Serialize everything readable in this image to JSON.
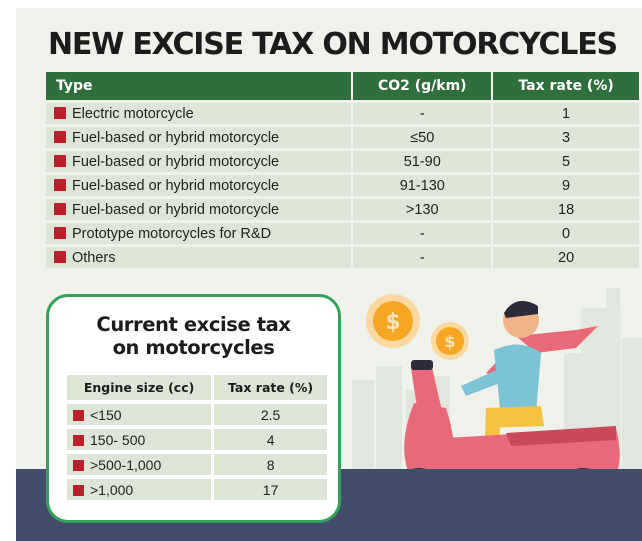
{
  "title": "NEW EXCISE TAX ON MOTORCYCLES",
  "main_table": {
    "headers": [
      "Type",
      "CO2 (g/km)",
      "Tax rate (%)"
    ],
    "rows": [
      {
        "type": "Electric motorcycle",
        "co2": "-",
        "rate": "1"
      },
      {
        "type": "Fuel-based or hybrid motorcycle",
        "co2": "≤50",
        "rate": "3"
      },
      {
        "type": "Fuel-based or hybrid motorcycle",
        "co2": "51-90",
        "rate": "5"
      },
      {
        "type": "Fuel-based or hybrid motorcycle",
        "co2": "91-130",
        "rate": "9"
      },
      {
        "type": "Fuel-based or hybrid motorcycle",
        "co2": ">130",
        "rate": "18"
      },
      {
        "type": "Prototype motorcycles for R&D",
        "co2": "-",
        "rate": "0"
      },
      {
        "type": "Others",
        "co2": "-",
        "rate": "20"
      }
    ]
  },
  "current": {
    "title_line1": "Current excise tax",
    "title_line2": "on motorcycles",
    "headers": [
      "Engine size (cc)",
      "Tax rate (%)"
    ],
    "rows": [
      {
        "engine": "<150",
        "rate": "2.5"
      },
      {
        "engine": "150- 500",
        "rate": "4"
      },
      {
        "engine": ">500-1,000",
        "rate": "8"
      },
      {
        "engine": ">1,000",
        "rate": "17"
      }
    ]
  },
  "colors": {
    "header_green": "#2f6f3d",
    "row_fill": "#dde6d6",
    "bullet_red": "#b8202c",
    "box_border": "#33a05c",
    "road": "#424d6b",
    "scooter": "#e86a7a",
    "coin": "#f5a623"
  },
  "icons": [
    "dollar-coin-icon",
    "scooter-rider-illustration",
    "city-skyline-illustration"
  ]
}
